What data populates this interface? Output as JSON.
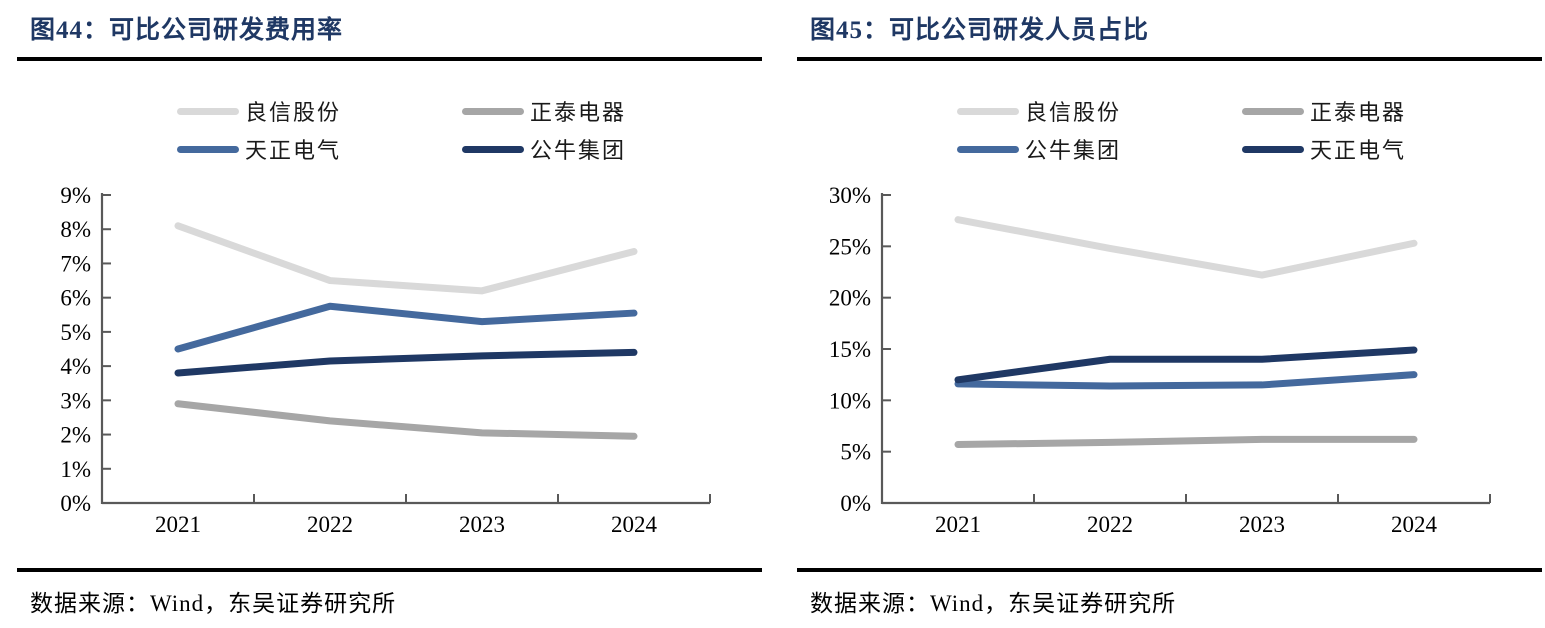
{
  "page": {
    "background": "#ffffff",
    "title_color": "#1F3864",
    "rule_color": "#000000",
    "axis_color": "#595959",
    "tick_label_color": "#000000"
  },
  "figures": [
    {
      "title": "图44：可比公司研发费用率",
      "source": "数据来源：Wind，东吴证券研究所"
    },
    {
      "title": "图45：可比公司研发人员占比",
      "source": "数据来源：Wind，东吴证券研究所"
    }
  ],
  "chart_data": [
    {
      "type": "line",
      "title": "图44：可比公司研发费用率",
      "categories": [
        "2021",
        "2022",
        "2023",
        "2024"
      ],
      "series": [
        {
          "name": "良信股份",
          "color": "#D9D9D9",
          "values": [
            8.1,
            6.5,
            6.2,
            7.35
          ]
        },
        {
          "name": "正泰电器",
          "color": "#A6A6A6",
          "values": [
            2.9,
            2.4,
            2.05,
            1.95
          ]
        },
        {
          "name": "天正电气",
          "color": "#44699D",
          "values": [
            4.5,
            5.75,
            5.3,
            5.55
          ]
        },
        {
          "name": "公牛集团",
          "color": "#1F3864",
          "values": [
            3.8,
            4.15,
            4.3,
            4.4
          ]
        }
      ],
      "xlabel": "",
      "ylabel": "",
      "ylim": [
        0,
        9
      ],
      "ytick_step": 1,
      "ytick_suffix": "%",
      "grid": false,
      "legend_position": "top",
      "legend_order": [
        "良信股份",
        "正泰电器",
        "天正电气",
        "公牛集团"
      ]
    },
    {
      "type": "line",
      "title": "图45：可比公司研发人员占比",
      "categories": [
        "2021",
        "2022",
        "2023",
        "2024"
      ],
      "series": [
        {
          "name": "良信股份",
          "color": "#D9D9D9",
          "values": [
            27.6,
            24.8,
            22.2,
            25.3
          ]
        },
        {
          "name": "正泰电器",
          "color": "#A6A6A6",
          "values": [
            5.7,
            5.9,
            6.2,
            6.2
          ]
        },
        {
          "name": "公牛集团",
          "color": "#44699D",
          "values": [
            11.6,
            11.4,
            11.5,
            12.5
          ]
        },
        {
          "name": "天正电气",
          "color": "#1F3864",
          "values": [
            12.0,
            14.0,
            14.0,
            14.9
          ]
        }
      ],
      "xlabel": "",
      "ylabel": "",
      "ylim": [
        0,
        30
      ],
      "ytick_step": 5,
      "ytick_suffix": "%",
      "grid": false,
      "legend_position": "top",
      "legend_order": [
        "良信股份",
        "正泰电器",
        "公牛集团",
        "天正电气"
      ]
    }
  ]
}
